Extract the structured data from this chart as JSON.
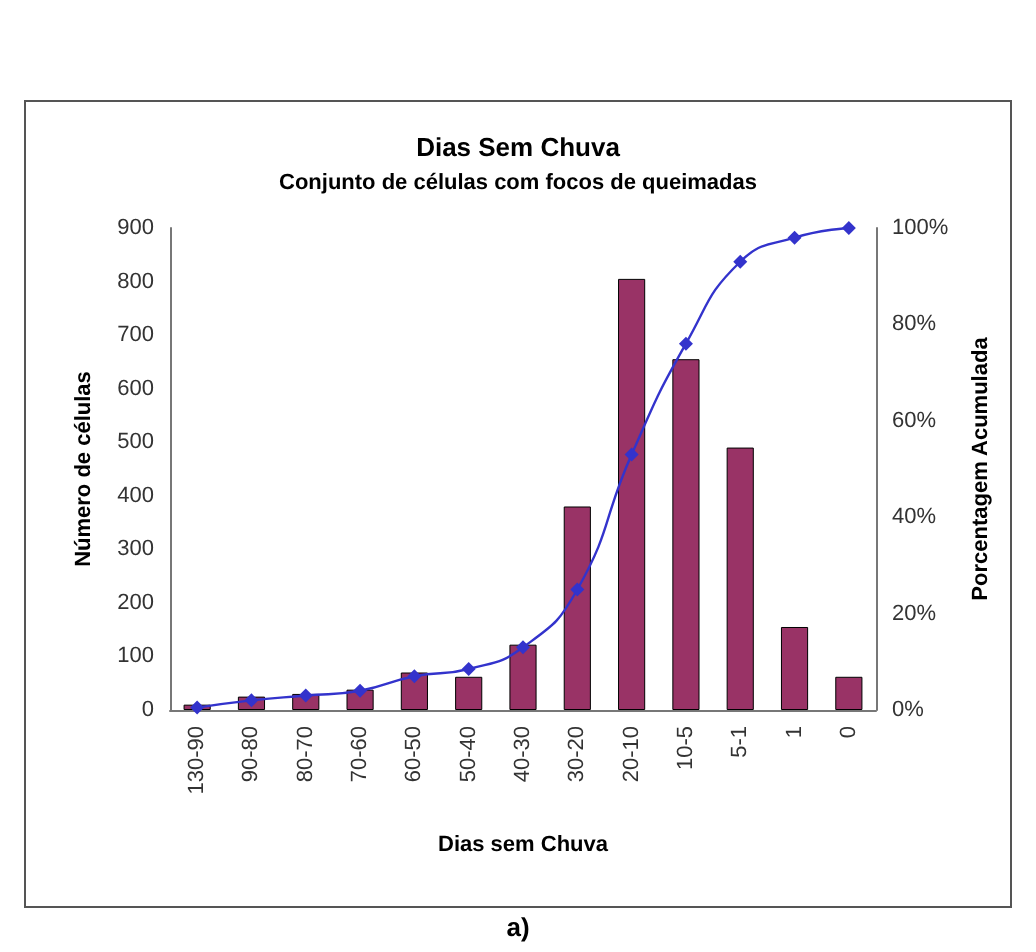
{
  "chart_data": {
    "type": "bar",
    "title": "Dias Sem Chuva",
    "subtitle": "Conjunto de células com focos de queimadas",
    "xlabel": "Dias sem Chuva",
    "ylabel": "Número de células",
    "y2label": "Porcentagem Acumulada",
    "categories": [
      "130-90",
      "90-80",
      "80-70",
      "70-60",
      "60-50",
      "50-40",
      "40-30",
      "30-20",
      "20-10",
      "10-5",
      "5-1",
      "1",
      "0"
    ],
    "series": [
      {
        "color": "#993366",
        "values": [
          10,
          25,
          30,
          38,
          70,
          62,
          122,
          380,
          805,
          655,
          490,
          155,
          62
        ]
      },
      {
        "type": "line",
        "axis": "y2",
        "color": "#3333cc",
        "marker": "diamond",
        "values": [
          0.5,
          2,
          3,
          4,
          7,
          8.5,
          13,
          25,
          53,
          76,
          93,
          98,
          100
        ]
      }
    ],
    "ylim": [
      0,
      900
    ],
    "yticks": [
      0,
      100,
      200,
      300,
      400,
      500,
      600,
      700,
      800,
      900
    ],
    "y2lim": [
      0,
      100
    ],
    "y2ticks": [
      {
        "value": 0,
        "label": "0%"
      },
      {
        "value": 20,
        "label": "20%"
      },
      {
        "value": 40,
        "label": "40%"
      },
      {
        "value": 60,
        "label": "60%"
      },
      {
        "value": 80,
        "label": "80%"
      },
      {
        "value": 100,
        "label": "100%"
      }
    ],
    "grid": false,
    "annotations": [
      "a)"
    ]
  }
}
